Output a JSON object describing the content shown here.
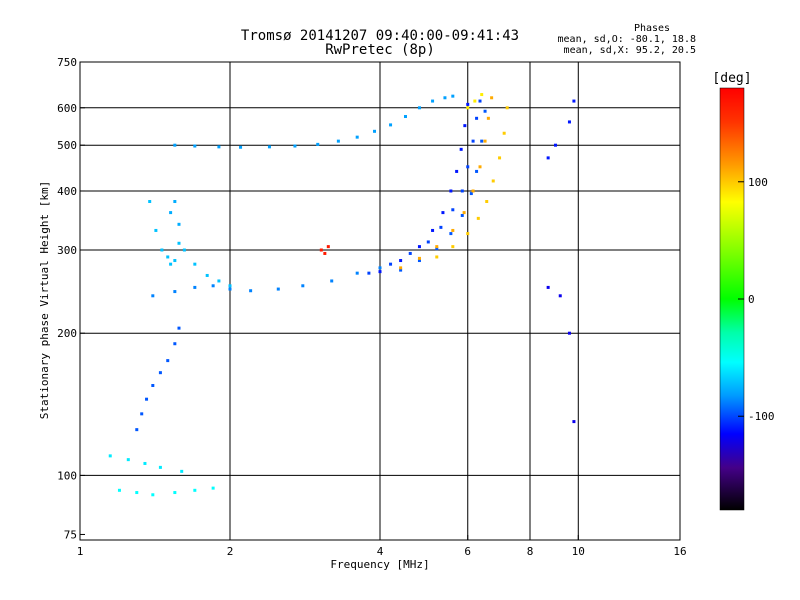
{
  "header": {
    "title_line1": "Tromsø 20141207 09:40:00-09:41:43",
    "title_line2": "RwPretec (8p)",
    "stats_title": "Phases",
    "stats_line1": "mean, sd,O: -80.1, 18.8",
    "stats_line2": "mean, sd,X:  95.2, 20.5"
  },
  "colorbar": {
    "label": "[deg]",
    "ticks": [
      "100",
      "0",
      "-100"
    ],
    "tick_values": [
      100,
      0,
      -100
    ],
    "range": [
      -180,
      180
    ]
  },
  "chart_data": {
    "type": "scatter",
    "xlabel": "Frequency [MHz]",
    "ylabel": "Stationary phase Virtual Height [km]",
    "x_scale": "log",
    "y_scale": "log",
    "xlim": [
      1,
      16
    ],
    "ylim": [
      73,
      750
    ],
    "x_ticks": [
      1,
      2,
      4,
      6,
      8,
      10,
      16
    ],
    "x_tick_labels": [
      "1",
      "2",
      "4",
      "6",
      "8",
      "10",
      "16"
    ],
    "x_gridlines": [
      2,
      4,
      6,
      8,
      10
    ],
    "y_ticks": [
      75,
      100,
      200,
      300,
      400,
      500,
      600,
      750
    ],
    "y_tick_labels": [
      "75",
      "100",
      "200",
      "300",
      "400",
      "500",
      "600",
      "750"
    ],
    "y_gridlines": [
      100,
      200,
      300,
      400,
      500,
      600
    ],
    "grid": true,
    "traces": [
      {
        "name": "",
        "phase": -85,
        "x": [
          1.4,
          1.55,
          1.7,
          1.85,
          2.0,
          2.2,
          2.5,
          2.8,
          3.2,
          3.6,
          4.0
        ],
        "y": [
          240,
          245,
          250,
          252,
          248,
          246,
          248,
          252,
          258,
          268,
          275
        ]
      },
      {
        "name": "",
        "phase": -70,
        "x": [
          1.38,
          1.42,
          1.46,
          1.5,
          1.52,
          1.55,
          1.58,
          1.62,
          1.7,
          1.8,
          1.9,
          2.0
        ],
        "y": [
          380,
          330,
          300,
          290,
          280,
          285,
          310,
          300,
          280,
          265,
          258,
          252
        ]
      },
      {
        "name": "",
        "phase": -75,
        "x": [
          1.52,
          1.55,
          1.58
        ],
        "y": [
          360,
          380,
          340
        ]
      },
      {
        "name": "",
        "phase": -78,
        "x": [
          1.55,
          1.7,
          1.9,
          2.1,
          2.4,
          2.7,
          3.0,
          3.3,
          3.6,
          3.9,
          4.2,
          4.5,
          4.8,
          5.1,
          5.4,
          5.6
        ],
        "y": [
          500,
          498,
          496,
          495,
          496,
          498,
          502,
          510,
          520,
          535,
          552,
          575,
          600,
          620,
          630,
          635
        ]
      },
      {
        "name": "",
        "phase": -110,
        "x": [
          4.0,
          4.4,
          4.8,
          5.1,
          5.35,
          5.55,
          5.7,
          5.82,
          5.92,
          6.0
        ],
        "y": [
          270,
          285,
          305,
          330,
          360,
          400,
          440,
          490,
          550,
          610
        ]
      },
      {
        "name": "",
        "phase": -100,
        "x": [
          3.8,
          4.2,
          4.6,
          5.0,
          5.3,
          5.6,
          5.85,
          6.0,
          6.15,
          6.25,
          6.35
        ],
        "y": [
          268,
          280,
          295,
          312,
          335,
          365,
          400,
          450,
          510,
          570,
          620
        ]
      },
      {
        "name": "",
        "phase": -95,
        "x": [
          4.4,
          4.8,
          5.2,
          5.55,
          5.85,
          6.1,
          6.25,
          6.4,
          6.5
        ],
        "y": [
          272,
          285,
          302,
          325,
          355,
          395,
          440,
          510,
          590
        ]
      },
      {
        "name": "",
        "phase": 110,
        "x": [
          4.4,
          4.8,
          5.2,
          5.6,
          5.9,
          6.15,
          6.35,
          6.5,
          6.6,
          6.7
        ],
        "y": [
          275,
          288,
          305,
          330,
          360,
          400,
          450,
          510,
          570,
          630
        ]
      },
      {
        "name": "",
        "phase": 100,
        "x": [
          5.2,
          5.6,
          6.0,
          6.3,
          6.55,
          6.75,
          6.95,
          7.1,
          7.2
        ],
        "y": [
          290,
          305,
          325,
          350,
          380,
          420,
          470,
          530,
          600
        ]
      },
      {
        "name": "",
        "phase": 90,
        "x": [
          6.0,
          6.2,
          6.4
        ],
        "y": [
          600,
          620,
          640
        ]
      },
      {
        "name": "",
        "phase": -95,
        "x": [
          1.3,
          1.33,
          1.36,
          1.4,
          1.45,
          1.5,
          1.55,
          1.58
        ],
        "y": [
          125,
          135,
          145,
          155,
          165,
          175,
          190,
          205
        ]
      },
      {
        "name": "",
        "phase": -60,
        "x": [
          1.15,
          1.25,
          1.35,
          1.45,
          1.6
        ],
        "y": [
          110,
          108,
          106,
          104,
          102
        ]
      },
      {
        "name": "",
        "phase": -55,
        "x": [
          1.2,
          1.3,
          1.4,
          1.55,
          1.7,
          1.85
        ],
        "y": [
          93,
          92,
          91,
          92,
          93,
          94
        ]
      },
      {
        "name": "",
        "phase": 165,
        "x": [
          3.05,
          3.1,
          3.15
        ],
        "y": [
          300,
          295,
          305
        ]
      },
      {
        "name": "",
        "phase": -110,
        "x": [
          8.7,
          9.0,
          9.6,
          9.8
        ],
        "y": [
          470,
          500,
          560,
          620
        ]
      },
      {
        "name": "",
        "phase": -120,
        "x": [
          8.7,
          9.2,
          9.6,
          9.8
        ],
        "y": [
          250,
          240,
          200,
          130
        ]
      }
    ]
  }
}
